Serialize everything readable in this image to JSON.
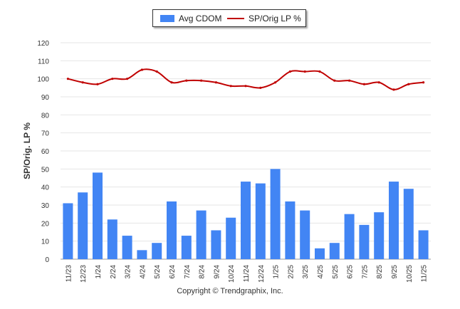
{
  "chart_data": {
    "type": "bar+line",
    "categories": [
      "11/23",
      "12/23",
      "1/24",
      "2/24",
      "3/24",
      "4/24",
      "5/24",
      "6/24",
      "7/24",
      "8/24",
      "9/24",
      "10/24",
      "11/24",
      "12/24",
      "1/25",
      "2/25",
      "3/25",
      "4/25",
      "5/25",
      "6/25",
      "7/25",
      "8/25",
      "9/25",
      "10/25",
      "11/25"
    ],
    "series": [
      {
        "name": "Avg CDOM",
        "type": "bar",
        "color": "#4285f4",
        "values": [
          31,
          37,
          48,
          22,
          13,
          5,
          9,
          32,
          13,
          27,
          16,
          23,
          43,
          42,
          50,
          32,
          27,
          6,
          9,
          25,
          19,
          26,
          43,
          39,
          16
        ]
      },
      {
        "name": "SP/Orig LP %",
        "type": "line",
        "color": "#c00000",
        "values": [
          100,
          98,
          97,
          100,
          100,
          105,
          104,
          98,
          99,
          99,
          98,
          96,
          96,
          95,
          98,
          104,
          104,
          104,
          99,
          99,
          97,
          98,
          94,
          97,
          98
        ]
      }
    ],
    "ylabel": "SP/Orig. LP %",
    "ylim": [
      0,
      120
    ],
    "yticks": [
      0,
      10,
      20,
      30,
      40,
      50,
      60,
      70,
      80,
      90,
      100,
      110,
      120
    ],
    "grid": true,
    "legend_position": "top-center"
  },
  "legend": {
    "bar_label": "Avg CDOM",
    "line_label": "SP/Orig LP %"
  },
  "footer": {
    "copyright": "Copyright © Trendgraphix, Inc."
  },
  "axis": {
    "ylabel": "SP/Orig. LP %"
  }
}
